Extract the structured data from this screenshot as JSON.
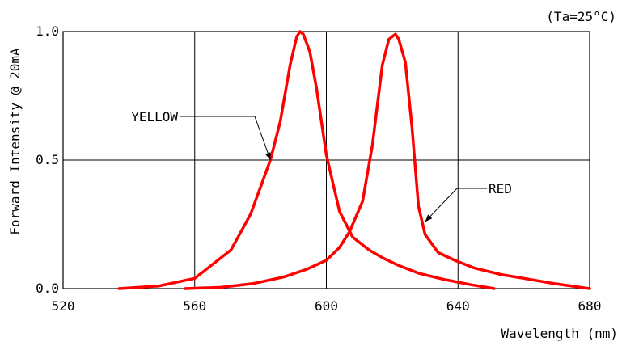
{
  "chart_data": {
    "type": "line",
    "title": "",
    "condition_note": "(Ta=25°C)",
    "xlabel": "Wavelength (nm)",
    "ylabel": "Forward Intensity @ 20mA",
    "xlim": [
      520,
      680
    ],
    "ylim": [
      0.0,
      1.0
    ],
    "x_ticks": [
      "520",
      "560",
      "600",
      "640",
      "680"
    ],
    "y_ticks": [
      "0.0",
      "0.5",
      "1.0"
    ],
    "grid": true,
    "line_color": "#ff0000",
    "series": [
      {
        "name": "YELLOW",
        "points": [
          [
            537,
            0.0
          ],
          [
            549,
            0.01
          ],
          [
            560,
            0.04
          ],
          [
            571,
            0.15
          ],
          [
            577,
            0.29
          ],
          [
            583,
            0.5
          ],
          [
            586,
            0.65
          ],
          [
            589,
            0.87
          ],
          [
            591,
            0.98
          ],
          [
            592,
            1.0
          ],
          [
            593,
            0.99
          ],
          [
            595,
            0.92
          ],
          [
            597,
            0.78
          ],
          [
            600,
            0.52
          ],
          [
            604,
            0.3
          ],
          [
            608,
            0.2
          ],
          [
            613,
            0.15
          ],
          [
            617,
            0.12
          ],
          [
            622,
            0.09
          ],
          [
            628,
            0.06
          ],
          [
            636,
            0.035
          ],
          [
            644,
            0.015
          ],
          [
            651,
            0.0
          ]
        ]
      },
      {
        "name": "RED",
        "points": [
          [
            557,
            0.0
          ],
          [
            568,
            0.005
          ],
          [
            578,
            0.02
          ],
          [
            587,
            0.045
          ],
          [
            594,
            0.075
          ],
          [
            600,
            0.11
          ],
          [
            604,
            0.16
          ],
          [
            607,
            0.22
          ],
          [
            611,
            0.34
          ],
          [
            614,
            0.56
          ],
          [
            617,
            0.87
          ],
          [
            619,
            0.97
          ],
          [
            621,
            0.99
          ],
          [
            622,
            0.97
          ],
          [
            624,
            0.88
          ],
          [
            626,
            0.63
          ],
          [
            628,
            0.32
          ],
          [
            630,
            0.21
          ],
          [
            634,
            0.14
          ],
          [
            639,
            0.11
          ],
          [
            645,
            0.08
          ],
          [
            653,
            0.055
          ],
          [
            660,
            0.04
          ],
          [
            669,
            0.02
          ],
          [
            680,
            0.0
          ]
        ]
      }
    ],
    "annotations": [
      {
        "text": "YELLOW",
        "target_x": 583,
        "target_y": 0.5
      },
      {
        "text": "RED",
        "target_x": 630,
        "target_y": 0.26
      }
    ]
  }
}
